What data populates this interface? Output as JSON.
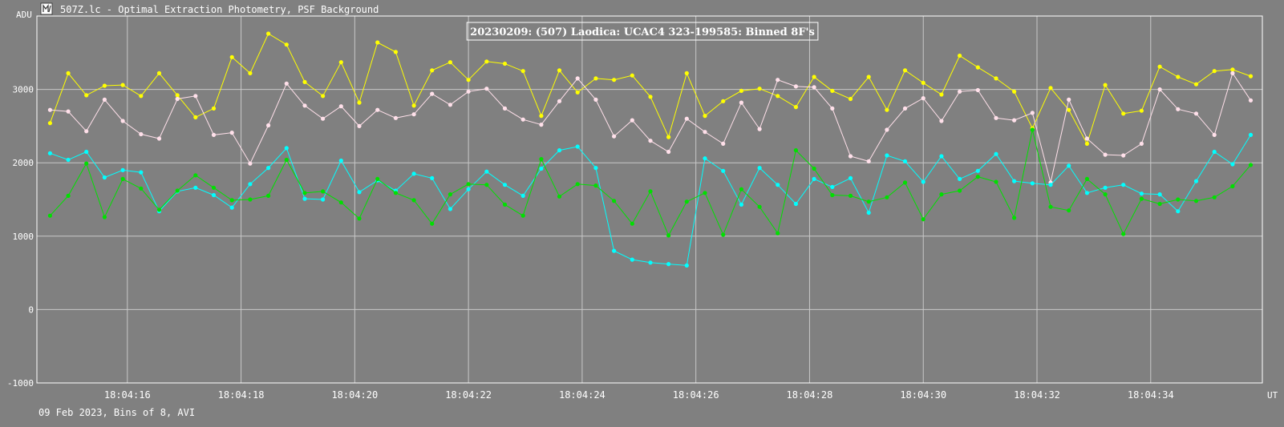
{
  "window": {
    "title": "507Z.lc - Optimal Extraction Photometry, PSF Background",
    "icon": "lightcurve-app-icon"
  },
  "footer_text": "09 Feb 2023, Bins of 8, AVI",
  "chart_data": {
    "type": "line",
    "title": "20230209: (507) Laodica: UCAC4 323-199585: Binned 8F's",
    "xlabel": "UT",
    "ylabel": "ADU",
    "xlim_seconds_after_18_04_00": [
      14.409,
      35.964
    ],
    "ylim": [
      -1000,
      4000
    ],
    "x_ticks": [
      "18:04:16",
      "18:04:18",
      "18:04:20",
      "18:04:22",
      "18:04:24",
      "18:04:26",
      "18:04:28",
      "18:04:30",
      "18:04:32",
      "18:04:34"
    ],
    "y_ticks": [
      -1000,
      0,
      1000,
      2000,
      3000
    ],
    "grid": true,
    "first_bin_seconds_after_18_04_00": 14.64,
    "bin_interval_seconds": 0.32,
    "colors": {
      "background": "#808080",
      "grid": "#c8c8c8",
      "axes": "#ffffff",
      "text": "#ffffff",
      "title_text": "#ffffff"
    },
    "series": [
      {
        "color": "#ffff00",
        "values": [
          2540,
          3220,
          2920,
          3050,
          3060,
          2910,
          3220,
          2920,
          2620,
          2740,
          3440,
          3220,
          3760,
          3610,
          3100,
          2910,
          3370,
          2820,
          3640,
          3510,
          2780,
          3260,
          3370,
          3130,
          3380,
          3350,
          3250,
          2640,
          3260,
          2960,
          3150,
          3130,
          3190,
          2900,
          2350,
          3220,
          2640,
          2840,
          2980,
          3010,
          2910,
          2760,
          3170,
          2980,
          2870,
          3170,
          2720,
          3260,
          3090,
          2930,
          3460,
          3300,
          3150,
          2970,
          2470,
          3020,
          2720,
          2260,
          3060,
          2670,
          2710,
          3310,
          3170,
          3070,
          3250,
          3270,
          3180
        ]
      },
      {
        "color": "#ffe0ea",
        "values": [
          2720,
          2700,
          2430,
          2860,
          2570,
          2390,
          2330,
          2870,
          2910,
          2380,
          2410,
          1990,
          2510,
          3080,
          2780,
          2600,
          2770,
          2500,
          2720,
          2610,
          2660,
          2940,
          2790,
          2970,
          3010,
          2740,
          2590,
          2520,
          2840,
          3150,
          2860,
          2360,
          2580,
          2300,
          2150,
          2600,
          2420,
          2260,
          2820,
          2460,
          3130,
          3040,
          3030,
          2740,
          2090,
          2020,
          2450,
          2740,
          2880,
          2570,
          2970,
          2990,
          2610,
          2580,
          2680,
          1730,
          2860,
          2330,
          2110,
          2100,
          2260,
          3000,
          2730,
          2670,
          2380,
          3220,
          2850
        ]
      },
      {
        "color": "#00ffff",
        "values": [
          2130,
          2040,
          2150,
          1800,
          1900,
          1870,
          1340,
          1610,
          1660,
          1560,
          1390,
          1710,
          1930,
          2200,
          1510,
          1500,
          2030,
          1600,
          1760,
          1620,
          1850,
          1790,
          1370,
          1640,
          1880,
          1700,
          1550,
          1920,
          2170,
          2220,
          1930,
          800,
          680,
          640,
          620,
          600,
          2060,
          1890,
          1430,
          1930,
          1700,
          1440,
          1780,
          1670,
          1790,
          1320,
          2100,
          2020,
          1740,
          2090,
          1780,
          1890,
          2120,
          1750,
          1720,
          1700,
          1960,
          1590,
          1660,
          1700,
          1580,
          1570,
          1340,
          1750,
          2150,
          1980,
          2380
        ]
      },
      {
        "color": "#00e000",
        "values": [
          1280,
          1550,
          1990,
          1260,
          1780,
          1650,
          1360,
          1620,
          1830,
          1660,
          1490,
          1500,
          1550,
          2040,
          1590,
          1610,
          1460,
          1240,
          1780,
          1590,
          1490,
          1170,
          1570,
          1710,
          1700,
          1430,
          1280,
          2050,
          1540,
          1710,
          1690,
          1480,
          1170,
          1610,
          1010,
          1470,
          1590,
          1020,
          1640,
          1400,
          1040,
          2170,
          1920,
          1560,
          1550,
          1470,
          1530,
          1730,
          1230,
          1570,
          1620,
          1810,
          1740,
          1250,
          2450,
          1400,
          1350,
          1780,
          1570,
          1030,
          1510,
          1440,
          1500,
          1480,
          1530,
          1680,
          1970
        ]
      }
    ]
  }
}
